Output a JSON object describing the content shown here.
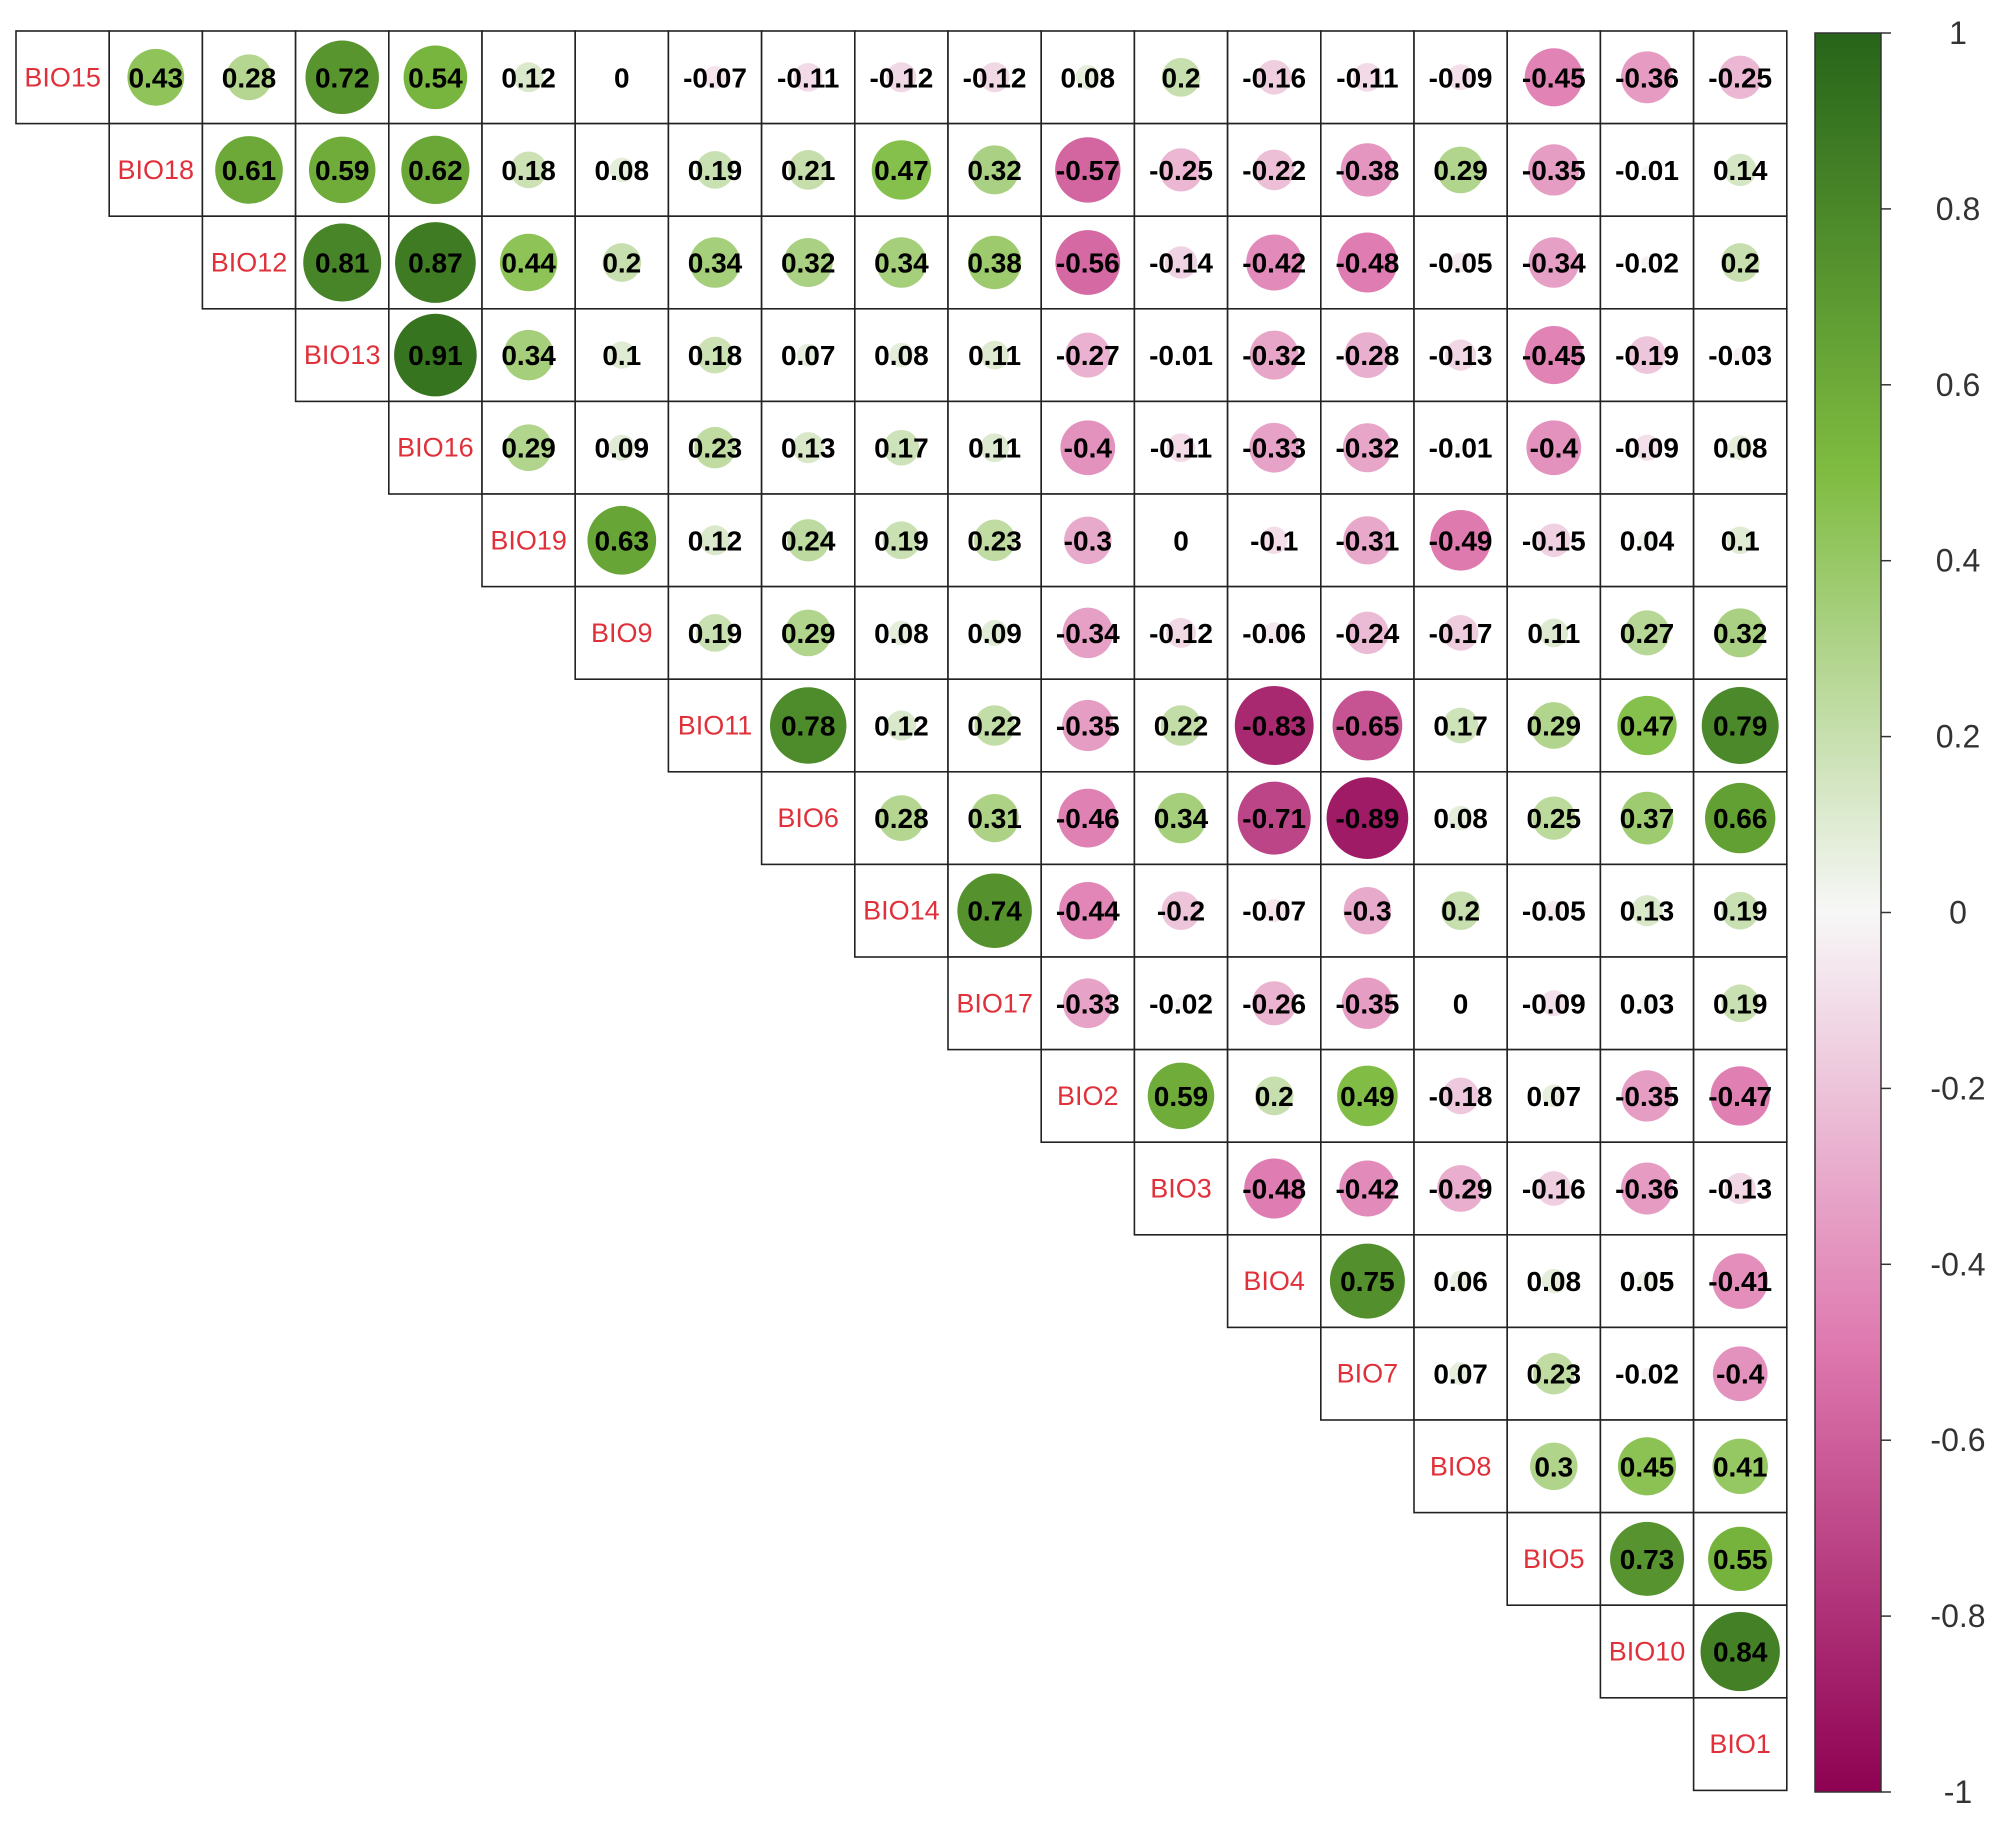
{
  "chart_data": {
    "type": "heatmap",
    "subtype": "correlation-matrix-upper-triangle",
    "glyph": "circle",
    "title": "",
    "variables": [
      "BIO15",
      "BIO18",
      "BIO12",
      "BIO13",
      "BIO16",
      "BIO19",
      "BIO9",
      "BIO11",
      "BIO6",
      "BIO14",
      "BIO17",
      "BIO2",
      "BIO3",
      "BIO4",
      "BIO7",
      "BIO8",
      "BIO5",
      "BIO10",
      "BIO1"
    ],
    "rows": [
      [
        0.43,
        0.28,
        0.72,
        0.54,
        0.12,
        0,
        -0.07,
        -0.11,
        -0.12,
        -0.12,
        0.08,
        0.2,
        -0.16,
        -0.11,
        -0.09,
        -0.45,
        -0.36,
        -0.25
      ],
      [
        0.61,
        0.59,
        0.62,
        0.18,
        0.08,
        0.19,
        0.21,
        0.47,
        0.32,
        -0.57,
        -0.25,
        -0.22,
        -0.38,
        0.29,
        -0.35,
        -0.01,
        0.14
      ],
      [
        0.81,
        0.87,
        0.44,
        0.2,
        0.34,
        0.32,
        0.34,
        0.38,
        -0.56,
        -0.14,
        -0.42,
        -0.48,
        -0.05,
        -0.34,
        -0.02,
        0.2
      ],
      [
        0.91,
        0.34,
        0.1,
        0.18,
        0.07,
        0.08,
        0.11,
        -0.27,
        -0.01,
        -0.32,
        -0.28,
        -0.13,
        -0.45,
        -0.19,
        -0.03
      ],
      [
        0.29,
        0.09,
        0.23,
        0.13,
        0.17,
        0.11,
        -0.4,
        -0.11,
        -0.33,
        -0.32,
        -0.01,
        -0.4,
        -0.09,
        0.08
      ],
      [
        0.63,
        0.12,
        0.24,
        0.19,
        0.23,
        -0.3,
        0,
        -0.1,
        -0.31,
        -0.49,
        -0.15,
        0.04,
        0.1
      ],
      [
        0.19,
        0.29,
        0.08,
        0.09,
        -0.34,
        -0.12,
        -0.06,
        -0.24,
        -0.17,
        0.11,
        0.27,
        0.32
      ],
      [
        0.78,
        0.12,
        0.22,
        -0.35,
        0.22,
        -0.83,
        -0.65,
        0.17,
        0.29,
        0.47,
        0.79
      ],
      [
        0.28,
        0.31,
        -0.46,
        0.34,
        -0.71,
        -0.89,
        0.08,
        0.25,
        0.37,
        0.66
      ],
      [
        0.74,
        -0.44,
        -0.2,
        -0.07,
        -0.3,
        0.2,
        -0.05,
        0.13,
        0.19
      ],
      [
        -0.33,
        -0.02,
        -0.26,
        -0.35,
        0,
        -0.09,
        0.03,
        0.19
      ],
      [
        0.59,
        0.2,
        0.49,
        -0.18,
        0.07,
        -0.35,
        -0.47
      ],
      [
        -0.48,
        -0.42,
        -0.29,
        -0.16,
        -0.36,
        -0.13
      ],
      [
        0.75,
        0.06,
        0.08,
        0.05,
        -0.41
      ],
      [
        0.07,
        0.23,
        -0.02,
        -0.4
      ],
      [
        0.3,
        0.45,
        0.41
      ],
      [
        0.73,
        0.55
      ],
      [
        0.84
      ],
      []
    ],
    "colorbar": {
      "range": [
        -1,
        1
      ],
      "tick_values": [
        1,
        0.8,
        0.6,
        0.4,
        0.2,
        0,
        -0.2,
        -0.4,
        -0.6,
        -0.8,
        -1
      ],
      "tick_labels": [
        "1",
        "0.8",
        "0.6",
        "0.4",
        "0.2",
        "0",
        "-0.2",
        "-0.4",
        "-0.6",
        "-0.8",
        "-1"
      ],
      "colors": {
        "negative_end": "#8e0152",
        "negative_mid": "#de77ae",
        "center": "#f7f7f7",
        "positive_mid": "#7fbc41",
        "positive_end": "#276419"
      }
    },
    "label_color": "#e0303a",
    "value_text_color": "#000000",
    "grid_color": "#222222"
  }
}
